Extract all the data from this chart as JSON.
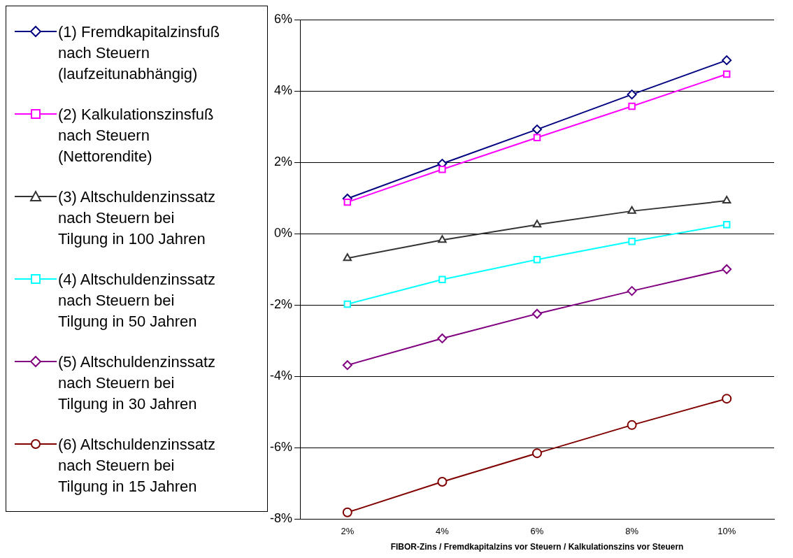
{
  "chart_data": {
    "type": "line",
    "xlabel": "FIBOR-Zins / Fremdkapitalzins vor Steuern / Kalkulationszins vor Steuern",
    "categories": [
      "2%",
      "4%",
      "6%",
      "8%",
      "10%"
    ],
    "series": [
      {
        "name": "(1) Fremdkapitalzinsfuß nach Steuern (laufzeitunabhängig)",
        "color": "#000080",
        "marker": "diamond",
        "values": [
          0.98,
          1.96,
          2.92,
          3.9,
          4.86
        ]
      },
      {
        "name": "(2) Kalkulationszinsfuß nach Steuern (Nettorendite)",
        "color": "#ff00ff",
        "marker": "square",
        "values": [
          0.88,
          1.8,
          2.69,
          3.57,
          4.47
        ]
      },
      {
        "name": "(3) Altschuldenzinssatz nach Steuern bei Tilgung in 100 Jahren",
        "color": "#333333",
        "marker": "triangle",
        "values": [
          -0.69,
          -0.18,
          0.25,
          0.63,
          0.92
        ]
      },
      {
        "name": "(4) Altschuldenzinssatz nach Steuern bei Tilgung in 50 Jahren",
        "color": "#00ffff",
        "marker": "square",
        "values": [
          -1.98,
          -1.29,
          -0.73,
          -0.22,
          0.25
        ]
      },
      {
        "name": "(5) Altschuldenzinssatz nach Steuern bei Tilgung in 30 Jahren",
        "color": "#800080",
        "marker": "diamond",
        "values": [
          -3.69,
          -2.94,
          -2.25,
          -1.61,
          -1.0
        ]
      },
      {
        "name": "(6) Altschuldenzinssatz nach Steuern bei Tilgung in 15 Jahren",
        "color": "#800000",
        "marker": "circle",
        "values": [
          -7.82,
          -6.96,
          -6.16,
          -5.37,
          -4.63
        ]
      }
    ],
    "ylim": [
      -8,
      6
    ],
    "yticks": [
      {
        "value": -8,
        "label": "-8%"
      },
      {
        "value": -6,
        "label": "-6%"
      },
      {
        "value": -4,
        "label": "-4%"
      },
      {
        "value": -2,
        "label": "-2%"
      },
      {
        "value": 0,
        "label": "0%"
      },
      {
        "value": 2,
        "label": "2%"
      },
      {
        "value": 4,
        "label": "4%"
      },
      {
        "value": 6,
        "label": "6%"
      }
    ],
    "grid": "y",
    "legend": "left"
  }
}
